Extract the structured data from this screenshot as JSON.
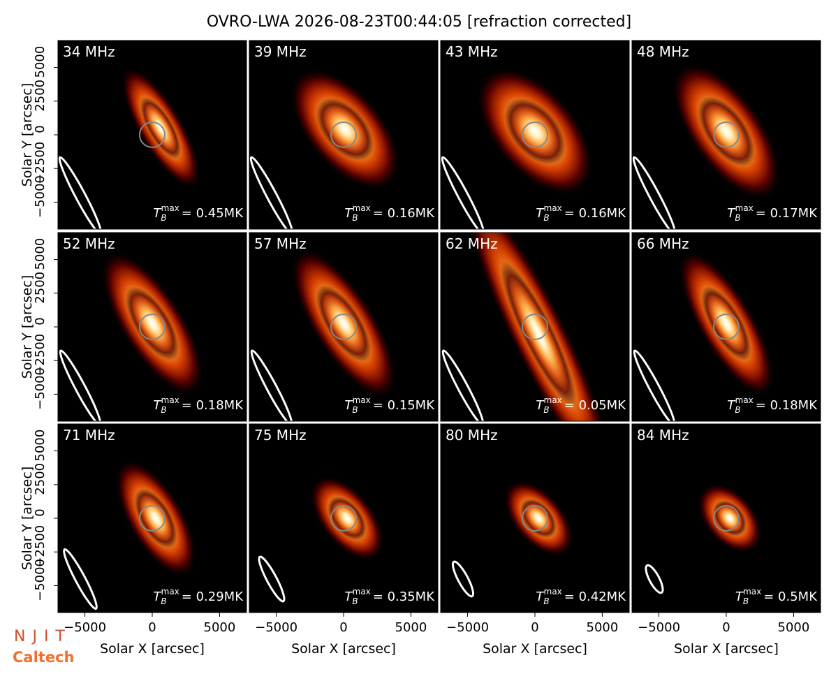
{
  "title": "OVRO-LWA 2026-08-23T00:44:05 [refraction corrected]",
  "x_label": "Solar X [arcsec]",
  "y_label": "Solar Y [arcsec]",
  "xlim": [
    -7000,
    7000
  ],
  "ylim": [
    -7000,
    7000
  ],
  "xticks": [
    {
      "value": -5000,
      "label": "−5000"
    },
    0,
    5000
  ],
  "yticks": [
    {
      "value": -5000,
      "label": "−5000"
    },
    {
      "value": -2500,
      "label": "−2500"
    },
    0,
    2500,
    5000
  ],
  "tmax_symbol": {
    "base": "T",
    "sub": "B",
    "sup": "max"
  },
  "panels": [
    {
      "label": "34 MHz",
      "tmax": "= 0.45MK"
    },
    {
      "label": "39 MHz",
      "tmax": "= 0.16MK"
    },
    {
      "label": "43 MHz",
      "tmax": "= 0.16MK"
    },
    {
      "label": "48 MHz",
      "tmax": "= 0.17MK"
    },
    {
      "label": "52 MHz",
      "tmax": "= 0.18MK"
    },
    {
      "label": "57 MHz",
      "tmax": "= 0.15MK"
    },
    {
      "label": "62 MHz",
      "tmax": "= 0.05MK"
    },
    {
      "label": "66 MHz",
      "tmax": "= 0.18MK"
    },
    {
      "label": "71 MHz",
      "tmax": "= 0.29MK"
    },
    {
      "label": "75 MHz",
      "tmax": "= 0.35MK"
    },
    {
      "label": "80 MHz",
      "tmax": "= 0.42MK"
    },
    {
      "label": "84 MHz",
      "tmax": "= 0.5MK"
    }
  ],
  "logos": [
    "NJIT",
    "Caltech"
  ]
}
